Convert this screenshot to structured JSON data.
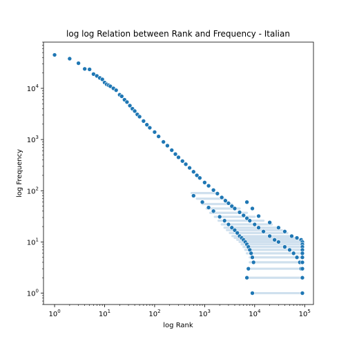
{
  "chart_data": {
    "type": "scatter",
    "title": "log log Relation between Rank and Frequency - Italian",
    "xlabel": "log Rank",
    "ylabel": "log Frequency",
    "xscale": "log",
    "yscale": "log",
    "xlim": [
      0.6,
      150000
    ],
    "ylim": [
      0.6,
      80000
    ],
    "grid": false,
    "marker_color": "#1f77b4",
    "marker_edge_color": "#ffffff",
    "xticks": [
      {
        "value": 1,
        "base": "10",
        "exp": "0"
      },
      {
        "value": 10,
        "base": "10",
        "exp": "1"
      },
      {
        "value": 100,
        "base": "10",
        "exp": "2"
      },
      {
        "value": 1000,
        "base": "10",
        "exp": "3"
      },
      {
        "value": 10000,
        "base": "10",
        "exp": "4"
      },
      {
        "value": 100000,
        "base": "10",
        "exp": "5"
      }
    ],
    "yticks": [
      {
        "value": 1,
        "base": "10",
        "exp": "0"
      },
      {
        "value": 10,
        "base": "10",
        "exp": "1"
      },
      {
        "value": 100,
        "base": "10",
        "exp": "2"
      },
      {
        "value": 1000,
        "base": "10",
        "exp": "3"
      },
      {
        "value": 10000,
        "base": "10",
        "exp": "4"
      }
    ],
    "points": [
      [
        1,
        45000
      ],
      [
        2,
        38000
      ],
      [
        3,
        31000
      ],
      [
        4,
        24000
      ],
      [
        5,
        23500
      ],
      [
        6,
        19000
      ],
      [
        7,
        17500
      ],
      [
        8,
        16000
      ],
      [
        9,
        15000
      ],
      [
        10,
        13000
      ],
      [
        11,
        12000
      ],
      [
        12,
        11500
      ],
      [
        13,
        11000
      ],
      [
        15,
        10000
      ],
      [
        17,
        9200
      ],
      [
        20,
        7500
      ],
      [
        22,
        7000
      ],
      [
        25,
        6000
      ],
      [
        28,
        5400
      ],
      [
        32,
        4600
      ],
      [
        36,
        4000
      ],
      [
        40,
        3600
      ],
      [
        45,
        3100
      ],
      [
        50,
        2800
      ],
      [
        60,
        2300
      ],
      [
        70,
        1950
      ],
      [
        80,
        1700
      ],
      [
        100,
        1400
      ],
      [
        120,
        1150
      ],
      [
        150,
        900
      ],
      [
        180,
        760
      ],
      [
        220,
        620
      ],
      [
        260,
        520
      ],
      [
        300,
        450
      ],
      [
        360,
        380
      ],
      [
        420,
        330
      ],
      [
        500,
        280
      ],
      [
        600,
        235
      ],
      [
        700,
        200
      ],
      [
        800,
        178
      ],
      [
        1000,
        145
      ],
      [
        1200,
        125
      ],
      [
        1500,
        103
      ],
      [
        1800,
        88
      ],
      [
        2200,
        74
      ],
      [
        2600,
        64
      ],
      [
        3000,
        57
      ],
      [
        3500,
        50
      ],
      [
        4000,
        45
      ],
      [
        5000,
        38
      ],
      [
        6000,
        33
      ],
      [
        7000,
        29
      ],
      [
        8000,
        26
      ],
      [
        10000,
        22
      ],
      [
        12000,
        19
      ],
      [
        15000,
        16
      ],
      [
        20000,
        13
      ],
      [
        25000,
        11
      ],
      [
        30000,
        10
      ],
      [
        40000,
        8
      ],
      [
        50000,
        7
      ],
      [
        60000,
        6
      ],
      [
        70000,
        5
      ],
      [
        80000,
        4
      ],
      [
        85000,
        3
      ],
      [
        88000,
        2
      ],
      [
        90000,
        1
      ],
      [
        7000,
        60
      ],
      [
        9000,
        45
      ],
      [
        12000,
        32
      ],
      [
        20000,
        24
      ],
      [
        30000,
        19
      ],
      [
        40000,
        16
      ],
      [
        55000,
        13
      ],
      [
        70000,
        12
      ],
      [
        85000,
        11
      ],
      [
        600,
        80
      ],
      [
        900,
        60
      ],
      [
        1200,
        47
      ],
      [
        1500,
        40
      ],
      [
        2000,
        31
      ],
      [
        2500,
        26
      ],
      [
        3000,
        22
      ],
      [
        3500,
        19
      ],
      [
        4000,
        17
      ],
      [
        4500,
        15
      ],
      [
        5000,
        13
      ],
      [
        5500,
        12
      ],
      [
        6000,
        11
      ],
      [
        6500,
        10
      ],
      [
        7000,
        9
      ],
      [
        7500,
        8
      ],
      [
        8000,
        7
      ],
      [
        8500,
        6
      ],
      [
        9000,
        5
      ],
      [
        9500,
        4
      ],
      [
        7500,
        3
      ],
      [
        7000,
        2
      ],
      [
        9000,
        1
      ],
      [
        90000,
        10
      ],
      [
        90000,
        9
      ],
      [
        90000,
        8
      ],
      [
        90000,
        7
      ],
      [
        90000,
        6
      ],
      [
        90000,
        5
      ],
      [
        90000,
        4
      ],
      [
        90000,
        3
      ],
      [
        90000,
        2
      ]
    ],
    "frequency_bands": [
      {
        "freq": 1,
        "rank_start": 9500,
        "rank_end": 90000
      },
      {
        "freq": 2,
        "rank_start": 7000,
        "rank_end": 90000
      },
      {
        "freq": 3,
        "rank_start": 7500,
        "rank_end": 90000
      },
      {
        "freq": 4,
        "rank_start": 8000,
        "rank_end": 90000
      },
      {
        "freq": 5,
        "rank_start": 8000,
        "rank_end": 90000
      },
      {
        "freq": 6,
        "rank_start": 7000,
        "rank_end": 90000
      },
      {
        "freq": 7,
        "rank_start": 6500,
        "rank_end": 90000
      },
      {
        "freq": 8,
        "rank_start": 6000,
        "rank_end": 90000
      },
      {
        "freq": 9,
        "rank_start": 5500,
        "rank_end": 90000
      },
      {
        "freq": 10,
        "rank_start": 5000,
        "rank_end": 90000
      },
      {
        "freq": 11,
        "rank_start": 4500,
        "rank_end": 85000
      },
      {
        "freq": 12,
        "rank_start": 4000,
        "rank_end": 70000
      },
      {
        "freq": 13,
        "rank_start": 3600,
        "rank_end": 55000
      },
      {
        "freq": 15,
        "rank_start": 3200,
        "rank_end": 45000
      },
      {
        "freq": 17,
        "rank_start": 2800,
        "rank_end": 35000
      },
      {
        "freq": 19,
        "rank_start": 2500,
        "rank_end": 30000
      },
      {
        "freq": 22,
        "rank_start": 2200,
        "rank_end": 22000
      },
      {
        "freq": 26,
        "rank_start": 1900,
        "rank_end": 15000
      },
      {
        "freq": 31,
        "rank_start": 1600,
        "rank_end": 10000
      },
      {
        "freq": 37,
        "rank_start": 1300,
        "rank_end": 7000
      },
      {
        "freq": 45,
        "rank_start": 1100,
        "rank_end": 5000
      },
      {
        "freq": 55,
        "rank_start": 900,
        "rank_end": 3500
      },
      {
        "freq": 70,
        "rank_start": 700,
        "rank_end": 2500
      },
      {
        "freq": 90,
        "rank_start": 550,
        "rank_end": 1700
      }
    ]
  }
}
